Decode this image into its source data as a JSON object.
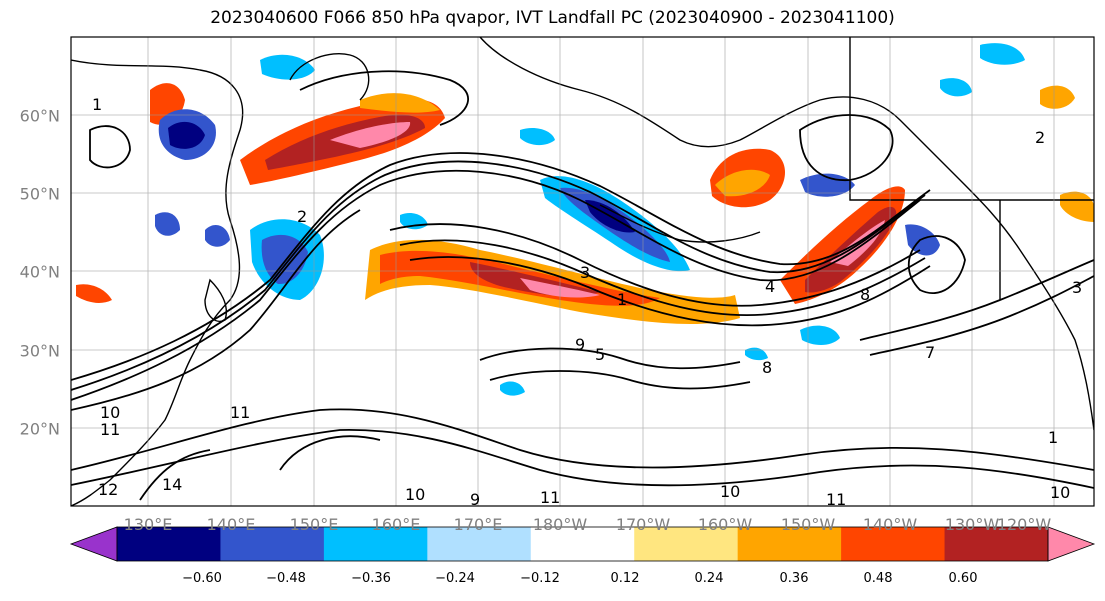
{
  "title": "2023040600 F066 850 hPa qvapor, IVT Landfall PC (2023040900 - 2023041100)",
  "map": {
    "region": "North Pacific",
    "lon_range": [
      120,
      -112
    ],
    "lat_range": [
      10,
      70
    ],
    "gridlines": true,
    "lat_labels": [
      "20°N",
      "30°N",
      "40°N",
      "50°N",
      "60°N"
    ],
    "lon_labels": [
      "130°E",
      "140°E",
      "150°E",
      "160°E",
      "170°E",
      "180°W",
      "170°W",
      "160°W",
      "150°W",
      "140°W",
      "130°W",
      "120°W"
    ],
    "contour_color": "#000000",
    "contour_labels": [
      "1",
      "2",
      "3",
      "4",
      "5",
      "7",
      "8",
      "9",
      "10",
      "11",
      "12",
      "14"
    ]
  },
  "colorbar": {
    "levels": [
      "−0.60",
      "−0.48",
      "−0.36",
      "−0.24",
      "−0.12",
      "0.12",
      "0.24",
      "0.36",
      "0.48",
      "0.60"
    ],
    "colors": [
      "#9933cc",
      "#000080",
      "#3355cc",
      "#00bfff",
      "#b0e0ff",
      "#ffffff",
      "#ffe680",
      "#ffa500",
      "#ff4500",
      "#b22222",
      "#ff88aa"
    ],
    "extend": "both"
  }
}
